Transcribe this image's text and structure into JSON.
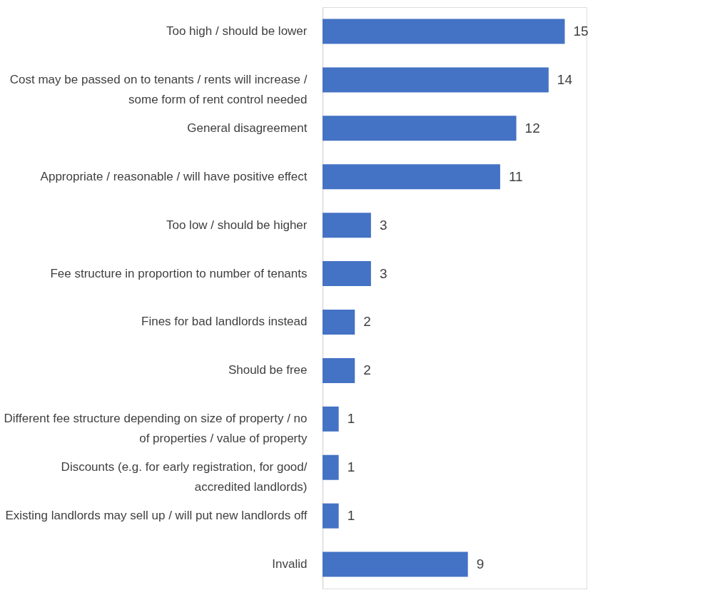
{
  "chart_data": {
    "type": "bar",
    "orientation": "horizontal",
    "data_labels": true,
    "color": "#4472c4",
    "categories": [
      "Too high / should be lower",
      "Cost may be passed on to tenants / rents will increase / some form of rent control needed",
      "General disagreement",
      "Appropriate / reasonable / will have positive effect",
      "Too low / should be higher",
      "Fee structure  in proportion to number of tenants",
      "Fines for bad landlords instead",
      "Should be free",
      "Different fee structure depending on size of property / no of properties / value of property",
      "Discounts  (e.g. for early registration, for good/ accredited landlords)",
      "Existing landlords may sell up / will put new landlords off",
      "Invalid"
    ],
    "values": [
      15,
      14,
      12,
      11,
      3,
      3,
      2,
      2,
      1,
      1,
      1,
      9
    ]
  }
}
